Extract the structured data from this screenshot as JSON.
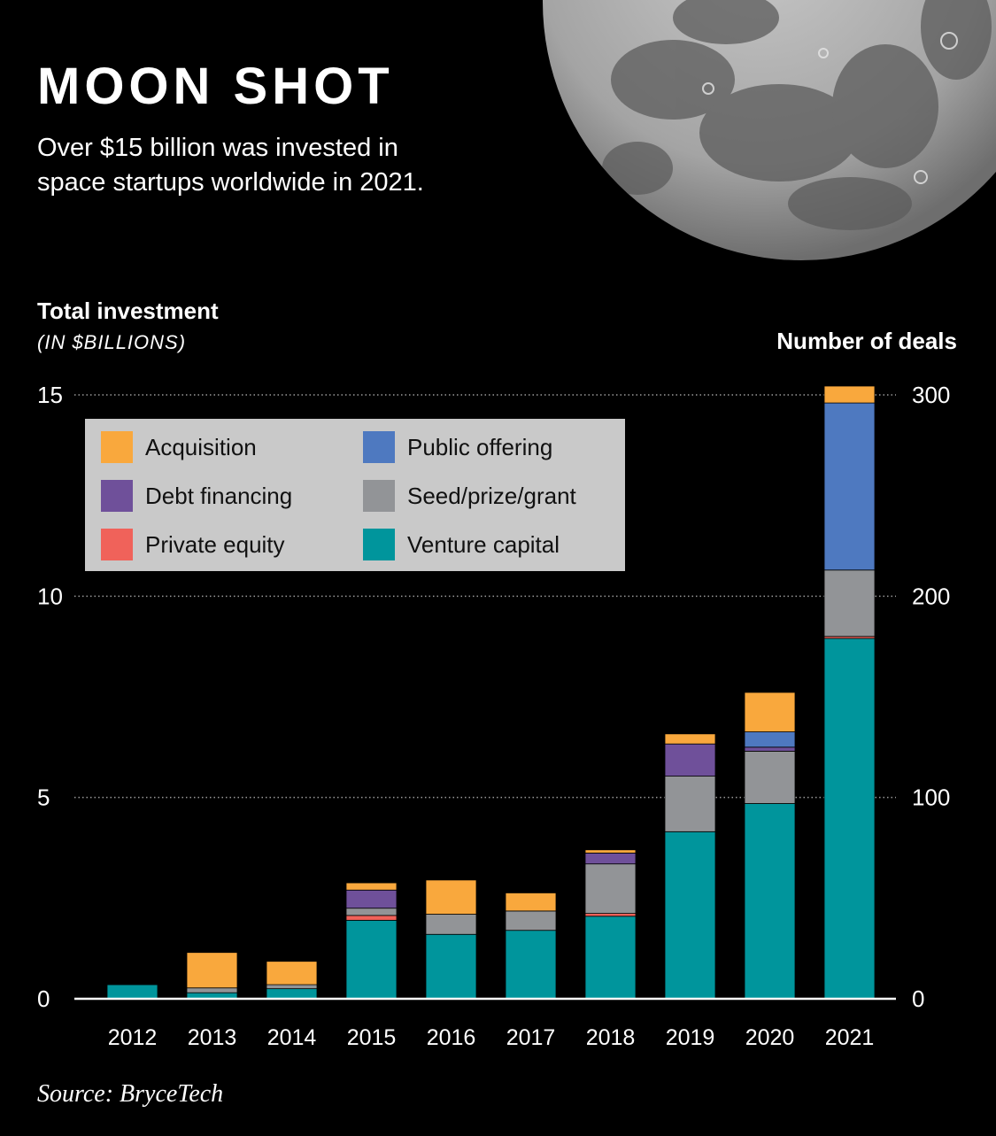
{
  "header": {
    "title": "MOON SHOT",
    "subtitle": "Over $15 billion was invested in space startups worldwide in 2021."
  },
  "footer": {
    "source": "Source: BryceTech"
  },
  "chart_data": {
    "type": "bar",
    "stacked": true,
    "ylabel": "Total investment",
    "ylabel_unit": "(IN $BILLIONS)",
    "ylabel_right": "Number of deals",
    "ylim": [
      0,
      15
    ],
    "ylim_right": [
      0,
      300
    ],
    "yticks": [
      0,
      5,
      10,
      15
    ],
    "yticks_labels": [
      "0",
      "5",
      "10",
      "15"
    ],
    "yticks_right_labels": [
      "0",
      "100",
      "200",
      "300"
    ],
    "grid": "horizontal-dotted",
    "legend_position": "top-left",
    "categories": [
      "2012",
      "2013",
      "2014",
      "2015",
      "2016",
      "2017",
      "2018",
      "2019",
      "2020",
      "2021"
    ],
    "series": [
      {
        "name": "Venture capital",
        "color": "#00959c",
        "values": [
          0.35,
          0.15,
          0.25,
          1.95,
          1.6,
          1.7,
          2.05,
          4.15,
          4.85,
          8.95
        ]
      },
      {
        "name": "Private equity",
        "color": "#f0625a",
        "values": [
          0,
          0,
          0,
          0.12,
          0,
          0,
          0.07,
          0,
          0,
          0.05
        ]
      },
      {
        "name": "Seed/prize/grant",
        "color": "#929497",
        "values": [
          0,
          0.12,
          0.1,
          0.18,
          0.5,
          0.48,
          1.23,
          1.38,
          1.3,
          1.65
        ]
      },
      {
        "name": "Debt financing",
        "color": "#6f509a",
        "values": [
          0,
          0,
          0,
          0.45,
          0,
          0,
          0.27,
          0.8,
          0.1,
          0
        ]
      },
      {
        "name": "Public offering",
        "color": "#4e79c0",
        "values": [
          0,
          0,
          0,
          0,
          0,
          0,
          0,
          0,
          0.38,
          4.15
        ]
      },
      {
        "name": "Acquisition",
        "color": "#f9a83d",
        "values": [
          0,
          0.88,
          0.58,
          0.18,
          0.85,
          0.45,
          0.08,
          0.25,
          0.98,
          0.42
        ]
      }
    ],
    "legend_order": [
      "Acquisition",
      "Public offering",
      "Debt financing",
      "Seed/prize/grant",
      "Private equity",
      "Venture capital"
    ]
  }
}
